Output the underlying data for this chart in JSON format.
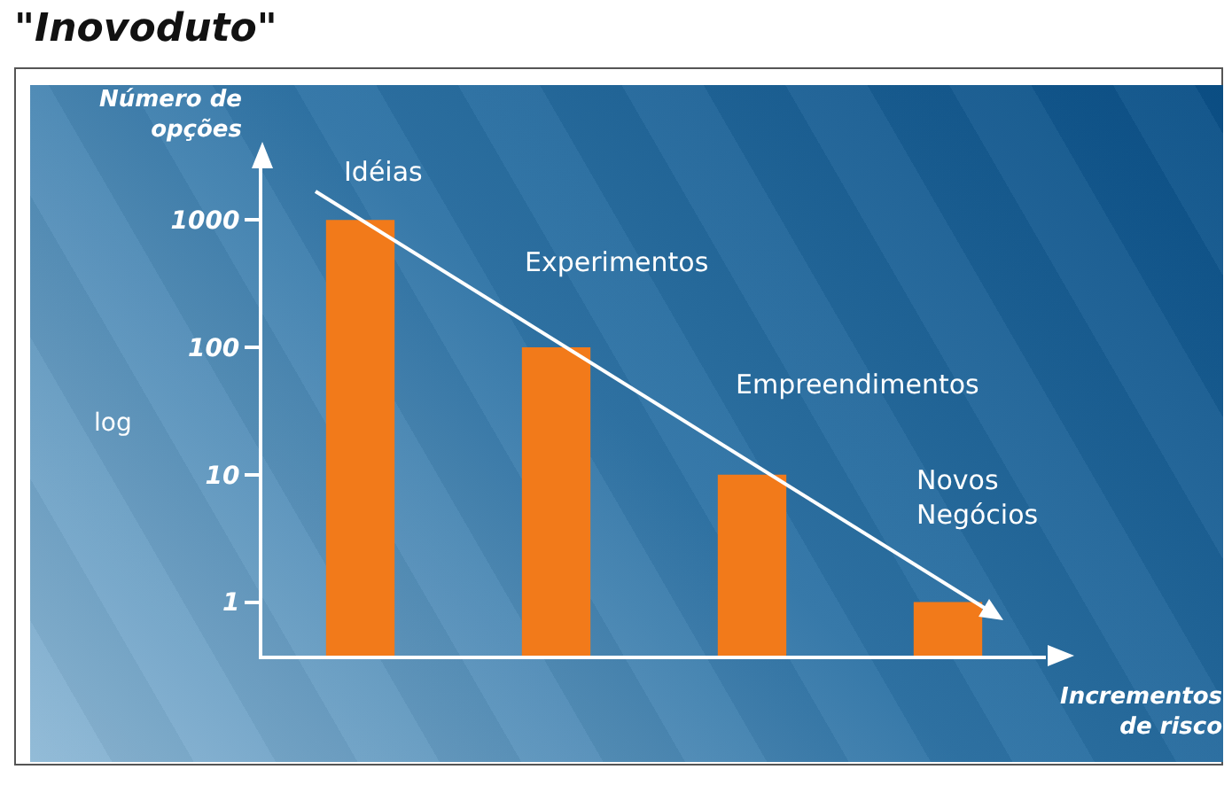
{
  "chart_data": {
    "type": "bar",
    "title": "\"Inovoduto\"",
    "ylabel": "Número de opções",
    "xlabel": "Incrementos de risco",
    "categories": [
      null,
      null,
      null,
      null
    ],
    "values": [
      1000,
      100,
      10,
      1
    ],
    "color": "#f27a1a",
    "log": true,
    "ylim": [
      0.38,
      3500
    ],
    "yticks": [
      1,
      10,
      100,
      1000
    ],
    "grid": false,
    "tick_labels": "y",
    "annotations": [
      "Idéias",
      "Experimentos",
      "Empreendimentos",
      "Novos Negócios",
      "log"
    ]
  }
}
